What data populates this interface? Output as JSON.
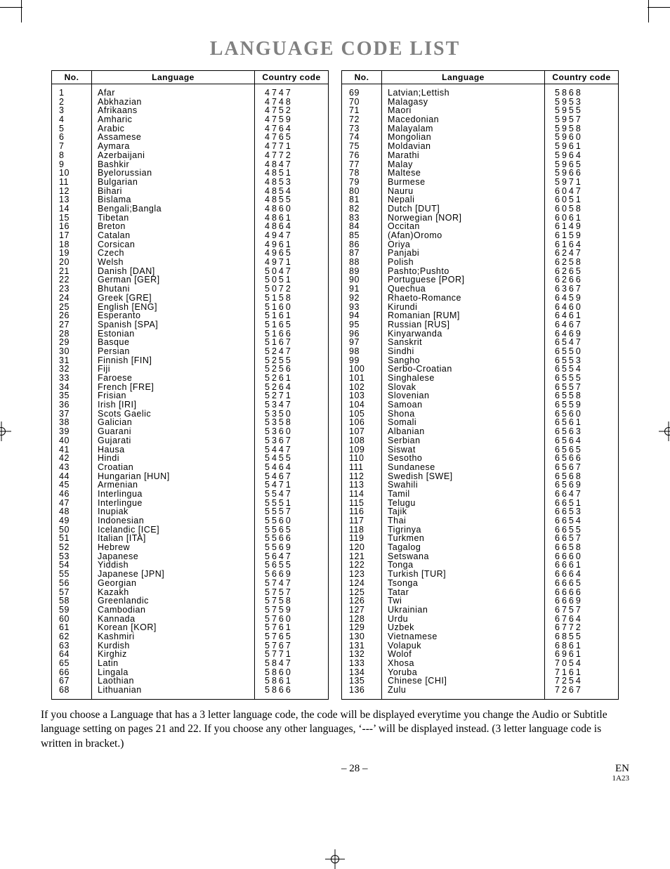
{
  "title": "LANGUAGE CODE LIST",
  "headers": {
    "no": "No.",
    "language": "Language",
    "code": "Country code"
  },
  "left": [
    {
      "n": "1",
      "l": "Afar",
      "c": "4747"
    },
    {
      "n": "2",
      "l": "Abkhazian",
      "c": "4748"
    },
    {
      "n": "3",
      "l": "Afrikaans",
      "c": "4752"
    },
    {
      "n": "4",
      "l": "Amharic",
      "c": "4759"
    },
    {
      "n": "5",
      "l": "Arabic",
      "c": "4764"
    },
    {
      "n": "6",
      "l": "Assamese",
      "c": "4765"
    },
    {
      "n": "7",
      "l": "Aymara",
      "c": "4771"
    },
    {
      "n": "8",
      "l": "Azerbaijani",
      "c": "4772"
    },
    {
      "n": "9",
      "l": "Bashkir",
      "c": "4847"
    },
    {
      "n": "10",
      "l": "Byelorussian",
      "c": "4851"
    },
    {
      "n": "11",
      "l": "Bulgarian",
      "c": "4853"
    },
    {
      "n": "12",
      "l": "Bihari",
      "c": "4854"
    },
    {
      "n": "13",
      "l": "Bislama",
      "c": "4855"
    },
    {
      "n": "14",
      "l": "Bengali;Bangla",
      "c": "4860"
    },
    {
      "n": "15",
      "l": "Tibetan",
      "c": "4861"
    },
    {
      "n": "16",
      "l": "Breton",
      "c": "4864"
    },
    {
      "n": "17",
      "l": "Catalan",
      "c": "4947"
    },
    {
      "n": "18",
      "l": "Corsican",
      "c": "4961"
    },
    {
      "n": "19",
      "l": "Czech",
      "c": "4965"
    },
    {
      "n": "20",
      "l": "Welsh",
      "c": "4971"
    },
    {
      "n": "21",
      "l": "Danish [DAN]",
      "c": "5047"
    },
    {
      "n": "22",
      "l": "German [GER]",
      "c": "5051"
    },
    {
      "n": "23",
      "l": "Bhutani",
      "c": "5072"
    },
    {
      "n": "24",
      "l": "Greek [GRE]",
      "c": "5158"
    },
    {
      "n": "25",
      "l": "English [ENG]",
      "c": "5160"
    },
    {
      "n": "26",
      "l": "Esperanto",
      "c": "5161"
    },
    {
      "n": "27",
      "l": "Spanish [SPA]",
      "c": "5165"
    },
    {
      "n": "28",
      "l": "Estonian",
      "c": "5166"
    },
    {
      "n": "29",
      "l": "Basque",
      "c": "5167"
    },
    {
      "n": "30",
      "l": "Persian",
      "c": "5247"
    },
    {
      "n": "31",
      "l": "Finnish [FIN]",
      "c": "5255"
    },
    {
      "n": "32",
      "l": "Fiji",
      "c": "5256"
    },
    {
      "n": "33",
      "l": "Faroese",
      "c": "5261"
    },
    {
      "n": "34",
      "l": "French [FRE]",
      "c": "5264"
    },
    {
      "n": "35",
      "l": "Frisian",
      "c": "5271"
    },
    {
      "n": "36",
      "l": "Irish [IRI]",
      "c": "5347"
    },
    {
      "n": "37",
      "l": "Scots Gaelic",
      "c": "5350"
    },
    {
      "n": "38",
      "l": "Galician",
      "c": "5358"
    },
    {
      "n": "39",
      "l": "Guarani",
      "c": "5360"
    },
    {
      "n": "40",
      "l": "Gujarati",
      "c": "5367"
    },
    {
      "n": "41",
      "l": "Hausa",
      "c": "5447"
    },
    {
      "n": "42",
      "l": "Hindi",
      "c": "5455"
    },
    {
      "n": "43",
      "l": "Croatian",
      "c": "5464"
    },
    {
      "n": "44",
      "l": "Hungarian [HUN]",
      "c": "5467"
    },
    {
      "n": "45",
      "l": "Armenian",
      "c": "5471"
    },
    {
      "n": "46",
      "l": "Interlingua",
      "c": "5547"
    },
    {
      "n": "47",
      "l": "Interlingue",
      "c": "5551"
    },
    {
      "n": "48",
      "l": "Inupiak",
      "c": "5557"
    },
    {
      "n": "49",
      "l": "Indonesian",
      "c": "5560"
    },
    {
      "n": "50",
      "l": "Icelandic [ICE]",
      "c": "5565"
    },
    {
      "n": "51",
      "l": "Italian [ITA]",
      "c": "5566"
    },
    {
      "n": "52",
      "l": "Hebrew",
      "c": "5569"
    },
    {
      "n": "53",
      "l": "Japanese",
      "c": "5647"
    },
    {
      "n": "54",
      "l": "Yiddish",
      "c": "5655"
    },
    {
      "n": "55",
      "l": "Japanese [JPN]",
      "c": "5669"
    },
    {
      "n": "56",
      "l": "Georgian",
      "c": "5747"
    },
    {
      "n": "57",
      "l": "Kazakh",
      "c": "5757"
    },
    {
      "n": "58",
      "l": "Greenlandic",
      "c": "5758"
    },
    {
      "n": "59",
      "l": "Cambodian",
      "c": "5759"
    },
    {
      "n": "60",
      "l": "Kannada",
      "c": "5760"
    },
    {
      "n": "61",
      "l": "Korean [KOR]",
      "c": "5761"
    },
    {
      "n": "62",
      "l": "Kashmiri",
      "c": "5765"
    },
    {
      "n": "63",
      "l": "Kurdish",
      "c": "5767"
    },
    {
      "n": "64",
      "l": "Kirghiz",
      "c": "5771"
    },
    {
      "n": "65",
      "l": "Latin",
      "c": "5847"
    },
    {
      "n": "66",
      "l": "Lingala",
      "c": "5860"
    },
    {
      "n": "67",
      "l": "Laothian",
      "c": "5861"
    },
    {
      "n": "68",
      "l": "Lithuanian",
      "c": "5866"
    }
  ],
  "right": [
    {
      "n": "69",
      "l": "Latvian;Lettish",
      "c": "5868"
    },
    {
      "n": "70",
      "l": "Malagasy",
      "c": "5953"
    },
    {
      "n": "71",
      "l": "Maori",
      "c": "5955"
    },
    {
      "n": "72",
      "l": "Macedonian",
      "c": "5957"
    },
    {
      "n": "73",
      "l": "Malayalam",
      "c": "5958"
    },
    {
      "n": "74",
      "l": "Mongolian",
      "c": "5960"
    },
    {
      "n": "75",
      "l": "Moldavian",
      "c": "5961"
    },
    {
      "n": "76",
      "l": "Marathi",
      "c": "5964"
    },
    {
      "n": "77",
      "l": "Malay",
      "c": "5965"
    },
    {
      "n": "78",
      "l": "Maltese",
      "c": "5966"
    },
    {
      "n": "79",
      "l": "Burmese",
      "c": "5971"
    },
    {
      "n": "80",
      "l": "Nauru",
      "c": "6047"
    },
    {
      "n": "81",
      "l": "Nepali",
      "c": "6051"
    },
    {
      "n": "82",
      "l": "Dutch [DUT]",
      "c": "6058"
    },
    {
      "n": "83",
      "l": "Norwegian [NOR]",
      "c": "6061"
    },
    {
      "n": "84",
      "l": "Occitan",
      "c": "6149"
    },
    {
      "n": "85",
      "l": "(Afan)Oromo",
      "c": "6159"
    },
    {
      "n": "86",
      "l": "Oriya",
      "c": "6164"
    },
    {
      "n": "87",
      "l": "Panjabi",
      "c": "6247"
    },
    {
      "n": "88",
      "l": "Polish",
      "c": "6258"
    },
    {
      "n": "89",
      "l": "Pashto;Pushto",
      "c": "6265"
    },
    {
      "n": "90",
      "l": "Portuguese [POR]",
      "c": "6266"
    },
    {
      "n": "91",
      "l": "Quechua",
      "c": "6367"
    },
    {
      "n": "92",
      "l": "Rhaeto-Romance",
      "c": "6459"
    },
    {
      "n": "93",
      "l": "Kirundi",
      "c": "6460"
    },
    {
      "n": "94",
      "l": "Romanian [RUM]",
      "c": "6461"
    },
    {
      "n": "95",
      "l": "Russian [RUS]",
      "c": "6467"
    },
    {
      "n": "96",
      "l": "Kinyarwanda",
      "c": "6469"
    },
    {
      "n": "97",
      "l": "Sanskrit",
      "c": "6547"
    },
    {
      "n": "98",
      "l": "Sindhi",
      "c": "6550"
    },
    {
      "n": "99",
      "l": "Sangho",
      "c": "6553"
    },
    {
      "n": "100",
      "l": "Serbo-Croatian",
      "c": "6554"
    },
    {
      "n": "101",
      "l": "Singhalese",
      "c": "6555"
    },
    {
      "n": "102",
      "l": "Slovak",
      "c": "6557"
    },
    {
      "n": "103",
      "l": "Slovenian",
      "c": "6558"
    },
    {
      "n": "104",
      "l": "Samoan",
      "c": "6559"
    },
    {
      "n": "105",
      "l": "Shona",
      "c": "6560"
    },
    {
      "n": "106",
      "l": "Somali",
      "c": "6561"
    },
    {
      "n": "107",
      "l": "Albanian",
      "c": "6563"
    },
    {
      "n": "108",
      "l": "Serbian",
      "c": "6564"
    },
    {
      "n": "109",
      "l": "Siswat",
      "c": "6565"
    },
    {
      "n": "110",
      "l": "Sesotho",
      "c": "6566"
    },
    {
      "n": "111",
      "l": "Sundanese",
      "c": "6567"
    },
    {
      "n": "112",
      "l": "Swedish [SWE]",
      "c": "6568"
    },
    {
      "n": "113",
      "l": "Swahili",
      "c": "6569"
    },
    {
      "n": "114",
      "l": "Tamil",
      "c": "6647"
    },
    {
      "n": "115",
      "l": "Telugu",
      "c": "6651"
    },
    {
      "n": "116",
      "l": "Tajik",
      "c": "6653"
    },
    {
      "n": "117",
      "l": "Thai",
      "c": "6654"
    },
    {
      "n": "118",
      "l": "Tigrinya",
      "c": "6655"
    },
    {
      "n": "119",
      "l": "Turkmen",
      "c": "6657"
    },
    {
      "n": "120",
      "l": "Tagalog",
      "c": "6658"
    },
    {
      "n": "121",
      "l": "Setswana",
      "c": "6660"
    },
    {
      "n": "122",
      "l": "Tonga",
      "c": "6661"
    },
    {
      "n": "123",
      "l": "Turkish [TUR]",
      "c": "6664"
    },
    {
      "n": "124",
      "l": "Tsonga",
      "c": "6665"
    },
    {
      "n": "125",
      "l": "Tatar",
      "c": "6666"
    },
    {
      "n": "126",
      "l": "Twi",
      "c": "6669"
    },
    {
      "n": "127",
      "l": "Ukrainian",
      "c": "6757"
    },
    {
      "n": "128",
      "l": "Urdu",
      "c": "6764"
    },
    {
      "n": "129",
      "l": "Uzbek",
      "c": "6772"
    },
    {
      "n": "130",
      "l": "Vietnamese",
      "c": "6855"
    },
    {
      "n": "131",
      "l": "Volapuk",
      "c": "6861"
    },
    {
      "n": "132",
      "l": "Wolof",
      "c": "6961"
    },
    {
      "n": "133",
      "l": "Xhosa",
      "c": "7054"
    },
    {
      "n": "134",
      "l": "Yoruba",
      "c": "7161"
    },
    {
      "n": "135",
      "l": "Chinese [CHI]",
      "c": "7254"
    },
    {
      "n": "136",
      "l": "Zulu",
      "c": "7267"
    }
  ],
  "footnote": "If you choose a Language that has a 3 letter language code, the code will be displayed everytime you change the Audio or Subtitle language setting on pages 21 and 22. If you choose any other languages, ‘---’ will be displayed instead. (3 letter language code is written in bracket.)",
  "page_number": "– 28 –",
  "lang_mark": "EN",
  "rev": "1A23"
}
